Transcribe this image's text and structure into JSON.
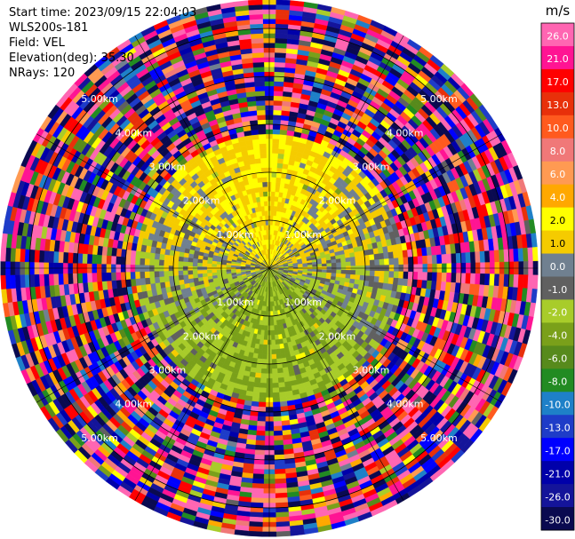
{
  "info": {
    "start_time": "Start time: 2023/09/15 22:04:03",
    "instrument": "WLS200s-181",
    "field": "Field: VEL",
    "elevation": "Elevation(deg): 35.30",
    "nrays": "NRays: 120"
  },
  "chart_data": {
    "type": "heatmap",
    "projection": "polar-ppi",
    "field": "VEL",
    "n_rays": 120,
    "range_rings_km": [
      1.0,
      2.0,
      3.0,
      4.0,
      5.0
    ],
    "range_ring_labels": [
      "1.00km",
      "2.00km",
      "3.00km",
      "4.00km",
      "5.00km"
    ],
    "max_range_km": 5.6,
    "spokes_deg": [
      0,
      30,
      60,
      90,
      120,
      150,
      180,
      210,
      240,
      270,
      300,
      330
    ],
    "description_of_pattern": {
      "inner_km_0_to_2.8": "mostly -2 to 2 m/s; near-zero gray, positive yellow toward north, negative green toward south",
      "outer_km_2.8_to_5.6": "noisy, full color range"
    },
    "colorbar": {
      "unit": "m/s",
      "ticks": [
        "26.0",
        "21.0",
        "17.0",
        "13.0",
        "10.0",
        "8.0",
        "6.0",
        "4.0",
        "2.0",
        "1.0",
        "0.0",
        "-1.0",
        "-2.0",
        "-4.0",
        "-6.0",
        "-8.0",
        "-10.0",
        "-13.0",
        "-17.0",
        "-21.0",
        "-26.0",
        "-30.0"
      ],
      "colors": [
        "#ff66b2",
        "#ff1493",
        "#ff0000",
        "#e8300a",
        "#ff5a1e",
        "#f07878",
        "#ff9a52",
        "#ffa800",
        "#ffff00",
        "#f5cb00",
        "#708090",
        "#606060",
        "#a8cc2a",
        "#7aa01a",
        "#578a1c",
        "#228b22",
        "#1e80c8",
        "#1e3cc8",
        "#0000ff",
        "#0000aa",
        "#14149a",
        "#0a0a50"
      ]
    }
  }
}
